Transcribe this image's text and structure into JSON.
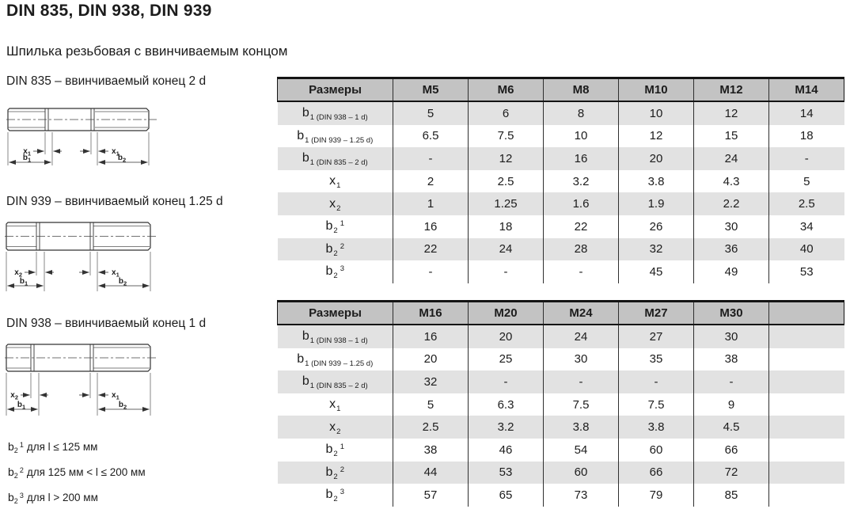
{
  "page": {
    "title": "DIN 835, DIN 938, DIN 939",
    "subtitle": "Шпилька резьбовая с ввинчиваемым концом"
  },
  "diagrams": [
    {
      "caption": "DIN 835 – ввинчиваемый конец 2 d",
      "dims": {
        "left": {
          "base": "x",
          "sub": "1"
        },
        "right": {
          "base": "x",
          "sub": "1"
        },
        "b_left": {
          "base": "b",
          "sub": "1"
        },
        "b_right": {
          "base": "b",
          "sub": "2"
        }
      }
    },
    {
      "caption": "DIN 939 – ввинчиваемый конец 1.25 d",
      "dims": {
        "left": {
          "base": "x",
          "sub": "2"
        },
        "right": {
          "base": "x",
          "sub": "1"
        },
        "b_left": {
          "base": "b",
          "sub": "1"
        },
        "b_right": {
          "base": "b",
          "sub": "2"
        }
      }
    },
    {
      "caption": "DIN 938 – ввинчиваемый конец 1 d",
      "dims": {
        "left": {
          "base": "x",
          "sub": "2"
        },
        "right": {
          "base": "x",
          "sub": "1"
        },
        "b_left": {
          "base": "b",
          "sub": "1"
        },
        "b_right": {
          "base": "b",
          "sub": "2"
        }
      }
    }
  ],
  "footnotes": [
    {
      "base": "b",
      "sub": "2",
      "sup": "1",
      "text": "для l ≤ 125 мм"
    },
    {
      "base": "b",
      "sub": "2",
      "sup": "2",
      "text": "для 125 мм < l ≤ 200 мм"
    },
    {
      "base": "b",
      "sub": "2",
      "sup": "3",
      "text": "для l > 200 мм"
    }
  ],
  "tables": [
    {
      "name": "sizes-m5-m14",
      "header": [
        "Размеры",
        "M5",
        "M6",
        "M8",
        "M10",
        "M12",
        "M14"
      ],
      "rows": [
        {
          "label": {
            "base": "b",
            "sub": "1 (DIN 938 – 1 d)",
            "sup": ""
          },
          "values": [
            "5",
            "6",
            "8",
            "10",
            "12",
            "14"
          ]
        },
        {
          "label": {
            "base": "b",
            "sub": "1 (DIN 939 – 1.25 d)",
            "sup": ""
          },
          "values": [
            "6.5",
            "7.5",
            "10",
            "12",
            "15",
            "18"
          ]
        },
        {
          "label": {
            "base": "b",
            "sub": "1 (DIN 835 – 2 d)",
            "sup": ""
          },
          "values": [
            "-",
            "12",
            "16",
            "20",
            "24",
            "-"
          ]
        },
        {
          "label": {
            "base": "x",
            "sub": "1",
            "sup": ""
          },
          "values": [
            "2",
            "2.5",
            "3.2",
            "3.8",
            "4.3",
            "5"
          ]
        },
        {
          "label": {
            "base": "x",
            "sub": "2",
            "sup": ""
          },
          "values": [
            "1",
            "1.25",
            "1.6",
            "1.9",
            "2.2",
            "2.5"
          ]
        },
        {
          "label": {
            "base": "b",
            "sub": "2",
            "sup": "1"
          },
          "values": [
            "16",
            "18",
            "22",
            "26",
            "30",
            "34"
          ]
        },
        {
          "label": {
            "base": "b",
            "sub": "2",
            "sup": "2"
          },
          "values": [
            "22",
            "24",
            "28",
            "32",
            "36",
            "40"
          ]
        },
        {
          "label": {
            "base": "b",
            "sub": "2",
            "sup": "3"
          },
          "values": [
            "-",
            "-",
            "-",
            "45",
            "49",
            "53"
          ]
        }
      ]
    },
    {
      "name": "sizes-m16-m30",
      "header": [
        "Размеры",
        "M16",
        "M20",
        "M24",
        "M27",
        "M30",
        ""
      ],
      "rows": [
        {
          "label": {
            "base": "b",
            "sub": "1 (DIN 938 – 1 d)",
            "sup": ""
          },
          "values": [
            "16",
            "20",
            "24",
            "27",
            "30",
            ""
          ]
        },
        {
          "label": {
            "base": "b",
            "sub": "1 (DIN 939 – 1.25 d)",
            "sup": ""
          },
          "values": [
            "20",
            "25",
            "30",
            "35",
            "38",
            ""
          ]
        },
        {
          "label": {
            "base": "b",
            "sub": "1 (DIN 835 – 2 d)",
            "sup": ""
          },
          "values": [
            "32",
            "-",
            "-",
            "-",
            "-",
            ""
          ]
        },
        {
          "label": {
            "base": "x",
            "sub": "1",
            "sup": ""
          },
          "values": [
            "5",
            "6.3",
            "7.5",
            "7.5",
            "9",
            ""
          ]
        },
        {
          "label": {
            "base": "x",
            "sub": "2",
            "sup": ""
          },
          "values": [
            "2.5",
            "3.2",
            "3.8",
            "3.8",
            "4.5",
            ""
          ]
        },
        {
          "label": {
            "base": "b",
            "sub": "2",
            "sup": "1"
          },
          "values": [
            "38",
            "46",
            "54",
            "60",
            "66",
            ""
          ]
        },
        {
          "label": {
            "base": "b",
            "sub": "2",
            "sup": "2"
          },
          "values": [
            "44",
            "53",
            "60",
            "66",
            "72",
            ""
          ]
        },
        {
          "label": {
            "base": "b",
            "sub": "2",
            "sup": "3"
          },
          "values": [
            "57",
            "65",
            "73",
            "79",
            "85",
            ""
          ]
        }
      ]
    }
  ],
  "colors": {
    "header_bg": "#c3c3c3",
    "stripe_bg": "#e2e2e2",
    "table_border": "#141414",
    "grid_line": "#2f2f2f",
    "text": "#1c1c1c"
  }
}
